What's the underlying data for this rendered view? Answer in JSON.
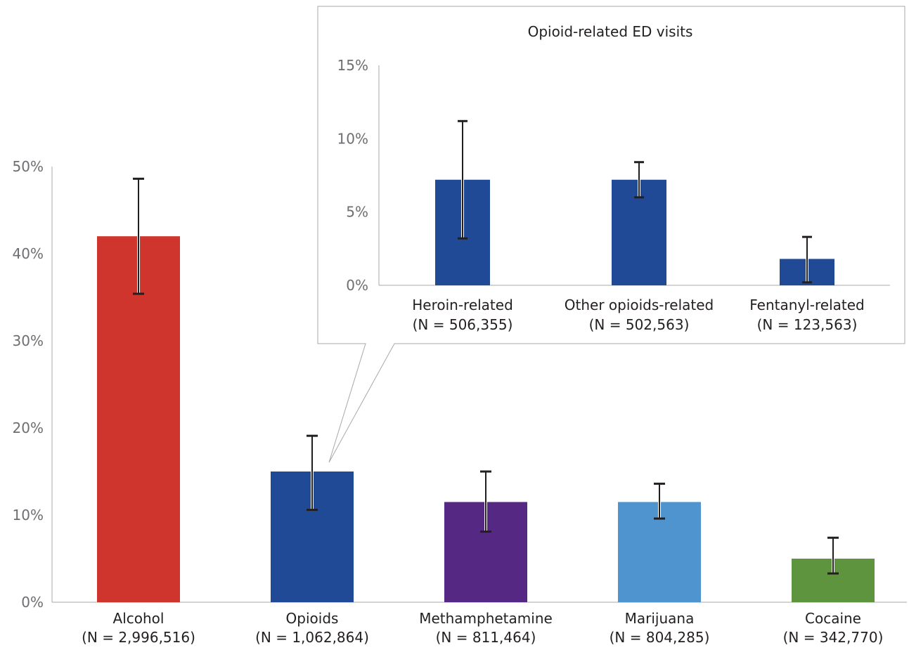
{
  "chart_data": [
    {
      "type": "bar",
      "categories": [
        "Alcohol",
        "Opioids",
        "Methamphetamine",
        "Marijuana",
        "Cocaine"
      ],
      "category_sublabels": [
        "(N = 2,996,516)",
        "(N = 1,062,864)",
        "(N = 811,464)",
        "(N = 804,285)",
        "(N = 342,770)"
      ],
      "values": [
        42,
        15,
        11.5,
        11.5,
        5
      ],
      "error_low": [
        35.4,
        10.6,
        8.1,
        9.6,
        3.3
      ],
      "error_high": [
        48.6,
        19.1,
        15,
        13.6,
        7.4
      ],
      "colors": [
        "#cf352d",
        "#214a96",
        "#552883",
        "#4f93cf",
        "#5f943e"
      ],
      "ylim": [
        0,
        50
      ],
      "yticks": [
        "0%",
        "10%",
        "20%",
        "30%",
        "40%",
        "50%"
      ],
      "title": "",
      "xlabel": "",
      "ylabel": "",
      "grid": false,
      "legend": "none"
    },
    {
      "type": "bar",
      "title": "Opioid-related ED visits",
      "categories": [
        "Heroin-related",
        "Other opioids-related",
        "Fentanyl-related"
      ],
      "category_sublabels": [
        "(N = 506,355)",
        "(N = 502,563)",
        "(N = 123,563)"
      ],
      "values": [
        7.2,
        7.2,
        1.8
      ],
      "error_low": [
        3.2,
        6,
        0.2
      ],
      "error_high": [
        11.2,
        8.4,
        3.3
      ],
      "colors": [
        "#214a96",
        "#214a96",
        "#214a96"
      ],
      "ylim": [
        0,
        15
      ],
      "yticks": [
        "0%",
        "5%",
        "10%",
        "15%"
      ],
      "xlabel": "",
      "ylabel": "",
      "grid": false,
      "legend": "none",
      "callout_from": "Opioids"
    }
  ]
}
